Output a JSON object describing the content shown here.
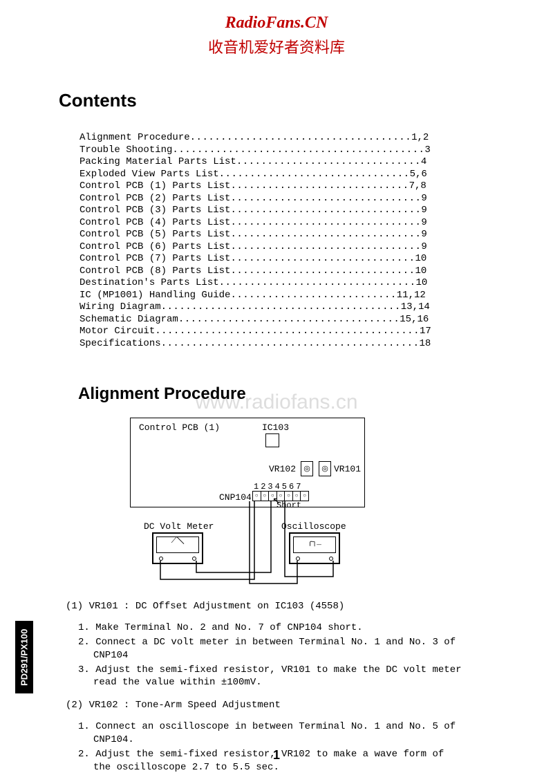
{
  "watermark": {
    "top_line1": "RadioFans.CN",
    "top_line2": "收音机爱好者资料库",
    "mid": "www.radiofans.cn",
    "colors": {
      "red": "#c00000",
      "grey": "#dddddd"
    }
  },
  "headings": {
    "contents": "Contents",
    "alignment": "Alignment Procedure"
  },
  "toc": [
    {
      "title": "Alignment Procedure",
      "pages": "1,2"
    },
    {
      "title": "Trouble Shooting",
      "pages": "3"
    },
    {
      "title": "Packing Material Parts List",
      "pages": "4"
    },
    {
      "title": "Exploded View Parts List",
      "pages": "5,6"
    },
    {
      "title": "Control PCB (1) Parts List",
      "pages": "7,8"
    },
    {
      "title": "Control PCB (2) Parts List",
      "pages": "9"
    },
    {
      "title": "Control PCB (3) Parts List",
      "pages": "9"
    },
    {
      "title": "Control PCB (4) Parts List",
      "pages": "9"
    },
    {
      "title": "Control PCB (5) Parts List",
      "pages": "9"
    },
    {
      "title": "Control PCB (6) Parts List",
      "pages": "9"
    },
    {
      "title": "Control PCB (7) Parts List",
      "pages": "10"
    },
    {
      "title": "Control PCB (8) Parts List",
      "pages": "10"
    },
    {
      "title": "Destination's Parts List",
      "pages": "10"
    },
    {
      "title": "IC (MP1001) Handling Guide",
      "pages": "11,12"
    },
    {
      "title": "Wiring Diagram",
      "pages": "13,14"
    },
    {
      "title": "Schematic Diagram",
      "pages": "15,16"
    },
    {
      "title": "Motor Circuit",
      "pages": "17"
    },
    {
      "title": "Specifications",
      "pages": "18"
    }
  ],
  "diagram": {
    "pcb_label": "Control PCB (1)",
    "ic_label": "IC103",
    "vr102_label": "VR102",
    "vr101_label": "VR101",
    "pins_numbers": "1234567",
    "cnp_label": "CNP104",
    "short_label": "Short",
    "meter_label": "DC Volt Meter",
    "scope_label": "Oscilloscope",
    "knob_glyph": "◎",
    "pin_glyph": "○",
    "arrow": "↖",
    "meter_needle": "⟋╲",
    "scope_wave": "╭┐_"
  },
  "procedure": {
    "sect1_title": "(1) VR101 : DC Offset Adjustment on IC103 (4558)",
    "sect1_steps": [
      "1. Make Terminal No. 2 and No. 7 of CNP104 short.",
      "2. Connect a DC volt meter in between Terminal No. 1 and No. 3 of CNP104",
      "3. Adjust the semi-fixed resistor, VR101 to make the DC volt meter read the value within ±100mV."
    ],
    "sect2_title": "(2) VR102 : Tone-Arm Speed Adjustment",
    "sect2_steps": [
      "1. Connect an oscilloscope in between Terminal No. 1 and No. 5 of CNP104.",
      "2. Adjust the semi-fixed resistor, VR102 to make a wave form of the oscilloscope 2.7 to 5.5 sec."
    ]
  },
  "sidetab": "PD291/PX100",
  "pagenum": "1",
  "layout": {
    "toc_total_width": 58
  }
}
